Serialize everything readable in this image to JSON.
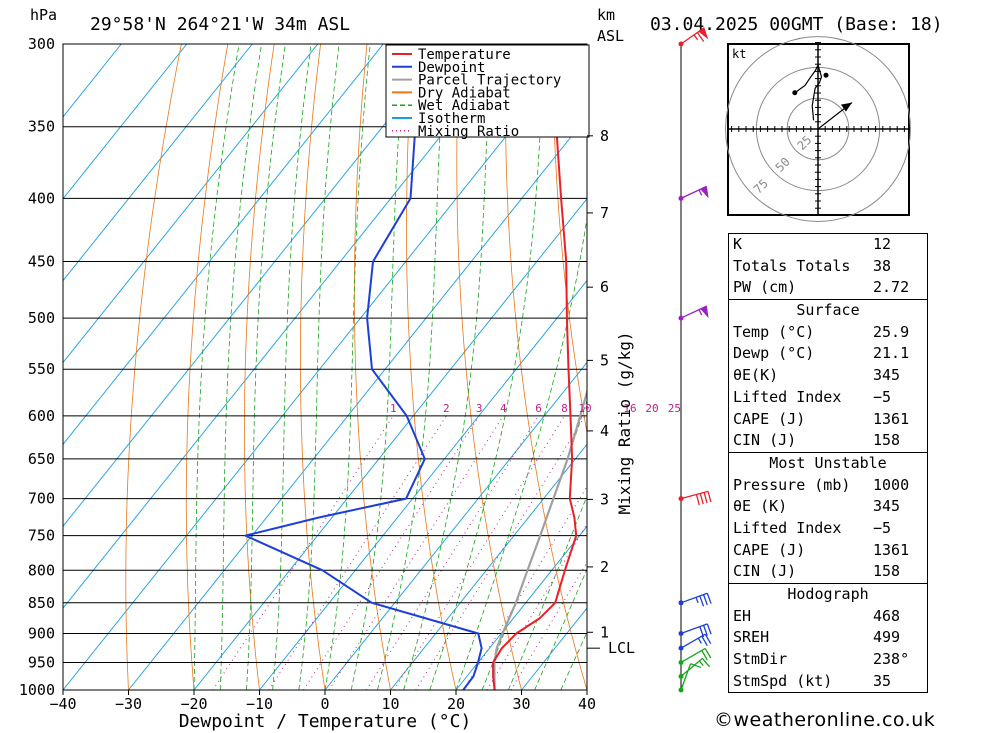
{
  "header": {
    "pressure_unit": "hPa",
    "location": "29°58'N 264°21'W 34m ASL",
    "km_unit": "km",
    "asl_label": "ASL",
    "run": "03.04.2025 00GMT (Base: 18)"
  },
  "legend": {
    "items": [
      {
        "label": "Temperature",
        "color": "#e8202a",
        "style": "solid"
      },
      {
        "label": "Dewpoint",
        "color": "#1d3fd6",
        "style": "solid"
      },
      {
        "label": "Parcel Trajectory",
        "color": "#a0a0a0",
        "style": "solid"
      },
      {
        "label": "Dry Adiabat",
        "color": "#e87818",
        "style": "solid"
      },
      {
        "label": "Wet Adiabat",
        "color": "#16a61a",
        "style": "dashed"
      },
      {
        "label": "Isotherm",
        "color": "#1a9ee0",
        "style": "solid"
      },
      {
        "label": "Mixing Ratio",
        "color": "#c0208c",
        "style": "dotted"
      }
    ]
  },
  "chart_data": {
    "type": "skew-t",
    "xlabel": "Dewpoint / Temperature (°C)",
    "ylabel": "hPa",
    "mixing_ratio_axis_label": "Mixing Ratio (g/kg)",
    "xlim": [
      -40,
      40
    ],
    "pressure_range": [
      1000,
      300
    ],
    "x_ticks": [
      "−40",
      "−30",
      "−20",
      "−10",
      "0",
      "10",
      "20",
      "30",
      "40"
    ],
    "x_tick_values": [
      -40,
      -30,
      -20,
      -10,
      0,
      10,
      20,
      30,
      40
    ],
    "pressure_levels": [
      300,
      350,
      400,
      450,
      500,
      550,
      600,
      650,
      700,
      750,
      800,
      850,
      900,
      950,
      1000
    ],
    "pressure_labels": [
      "300",
      "350",
      "400",
      "450",
      "500",
      "550",
      "600",
      "650",
      "700",
      "750",
      "800",
      "850",
      "900",
      "950",
      "1000"
    ],
    "km_ticks": [
      {
        "km": 1,
        "p": 898,
        "label": "1"
      },
      {
        "km": 2,
        "p": 795,
        "label": "2"
      },
      {
        "km": 3,
        "p": 701,
        "label": "3"
      },
      {
        "km": 4,
        "p": 617,
        "label": "4"
      },
      {
        "km": 5,
        "p": 541,
        "label": "5"
      },
      {
        "km": 6,
        "p": 472,
        "label": "6"
      },
      {
        "km": 7,
        "p": 411,
        "label": "7"
      },
      {
        "km": 8,
        "p": 356,
        "label": "8"
      }
    ],
    "lcl": {
      "p": 925,
      "label": "LCL"
    },
    "mixing_ratio_lines": [
      1,
      2,
      3,
      4,
      6,
      8,
      10,
      16,
      20,
      25
    ],
    "mixing_ratio_labels": [
      "1",
      "2",
      "3",
      "4",
      "6",
      "8",
      "10",
      "16",
      "20",
      "25"
    ],
    "temperature": {
      "name": "Temperature",
      "points": [
        [
          1000,
          25.9
        ],
        [
          975,
          24
        ],
        [
          950,
          22.3
        ],
        [
          925,
          21.9
        ],
        [
          900,
          22.3
        ],
        [
          875,
          24
        ],
        [
          850,
          24.5
        ],
        [
          800,
          22
        ],
        [
          750,
          19.5
        ],
        [
          725,
          17
        ],
        [
          700,
          14
        ],
        [
          650,
          9.5
        ],
        [
          600,
          4
        ],
        [
          550,
          -2
        ],
        [
          500,
          -8.5
        ],
        [
          450,
          -15.5
        ],
        [
          400,
          -24
        ],
        [
          350,
          -33.5
        ],
        [
          300,
          -45
        ]
      ]
    },
    "dewpoint": {
      "name": "Dewpoint",
      "points": [
        [
          1000,
          21.1
        ],
        [
          975,
          21
        ],
        [
          950,
          20
        ],
        [
          925,
          18.8
        ],
        [
          900,
          16.5
        ],
        [
          850,
          -3.5
        ],
        [
          800,
          -15
        ],
        [
          750,
          -31
        ],
        [
          725,
          -22
        ],
        [
          700,
          -11
        ],
        [
          650,
          -13
        ],
        [
          600,
          -21
        ],
        [
          550,
          -32
        ],
        [
          500,
          -39
        ],
        [
          450,
          -45
        ],
        [
          400,
          -47
        ],
        [
          350,
          -55
        ],
        [
          300,
          -65
        ]
      ]
    },
    "parcel": {
      "name": "Parcel Trajectory",
      "points": [
        [
          1000,
          25.9
        ],
        [
          950,
          22.5
        ],
        [
          925,
          21.1
        ],
        [
          900,
          20.2
        ],
        [
          850,
          18.5
        ],
        [
          800,
          16.3
        ],
        [
          750,
          14
        ],
        [
          700,
          11.5
        ],
        [
          650,
          8.8
        ],
        [
          600,
          5.5
        ],
        [
          550,
          1.8
        ],
        [
          500,
          -2.5
        ],
        [
          450,
          -7.5
        ],
        [
          400,
          -13.5
        ],
        [
          375,
          -17
        ]
      ]
    },
    "wind_barbs": [
      {
        "p": 1000,
        "dir_deg": 200,
        "speed_kt": 10
      },
      {
        "p": 975,
        "dir_deg": 230,
        "speed_kt": 15
      },
      {
        "p": 950,
        "dir_deg": 240,
        "speed_kt": 20
      },
      {
        "p": 925,
        "dir_deg": 240,
        "speed_kt": 25
      },
      {
        "p": 900,
        "dir_deg": 250,
        "speed_kt": 30
      },
      {
        "p": 850,
        "dir_deg": 250,
        "speed_kt": 35
      },
      {
        "p": 700,
        "dir_deg": 255,
        "speed_kt": 40
      },
      {
        "p": 500,
        "dir_deg": 245,
        "speed_kt": 55
      },
      {
        "p": 400,
        "dir_deg": 245,
        "speed_kt": 55
      },
      {
        "p": 300,
        "dir_deg": 235,
        "speed_kt": 65
      }
    ],
    "hodograph": {
      "unit_label": "kt",
      "ring_labels": [
        "25",
        "50",
        "75"
      ],
      "ring_values": [
        25,
        50,
        75
      ],
      "trace": [
        [
          -1.5,
          3
        ],
        [
          -2,
          8
        ],
        [
          -1,
          14
        ],
        [
          0.5,
          16
        ],
        [
          1.2,
          18
        ],
        [
          0,
          22
        ],
        [
          -1,
          20
        ],
        [
          -2.5,
          18
        ],
        [
          -4.5,
          15
        ],
        [
          -8,
          12.5
        ]
      ],
      "storm_motion": [
        -9,
        7
      ],
      "mean_wind": [
        -1,
        -3
      ]
    }
  },
  "indices": [
    {
      "rows": [
        {
          "key": "K",
          "value": "12"
        },
        {
          "key": "Totals Totals",
          "value": "38"
        },
        {
          "key": "PW (cm)",
          "value": "2.72"
        }
      ]
    },
    {
      "title": "Surface",
      "rows": [
        {
          "key": "Temp (°C)",
          "value": "25.9"
        },
        {
          "key": "Dewp (°C)",
          "value": "21.1"
        },
        {
          "key": "θE(K)",
          "value": "345"
        },
        {
          "key": "Lifted Index",
          "value": "−5"
        },
        {
          "key": "CAPE (J)",
          "value": "1361"
        },
        {
          "key": "CIN (J)",
          "value": "158"
        }
      ]
    },
    {
      "title": "Most Unstable",
      "rows": [
        {
          "key": "Pressure (mb)",
          "value": "1000"
        },
        {
          "key": "θE (K)",
          "value": "345"
        },
        {
          "key": "Lifted Index",
          "value": "−5"
        },
        {
          "key": "CAPE (J)",
          "value": "1361"
        },
        {
          "key": "CIN (J)",
          "value": "158"
        }
      ]
    },
    {
      "title": "Hodograph",
      "rows": [
        {
          "key": "EH",
          "value": "468"
        },
        {
          "key": "SREH",
          "value": "499"
        },
        {
          "key": "StmDir",
          "value": "238°"
        },
        {
          "key": "StmSpd (kt)",
          "value": "35"
        }
      ]
    }
  ],
  "credit": "©weatheronline.co.uk"
}
